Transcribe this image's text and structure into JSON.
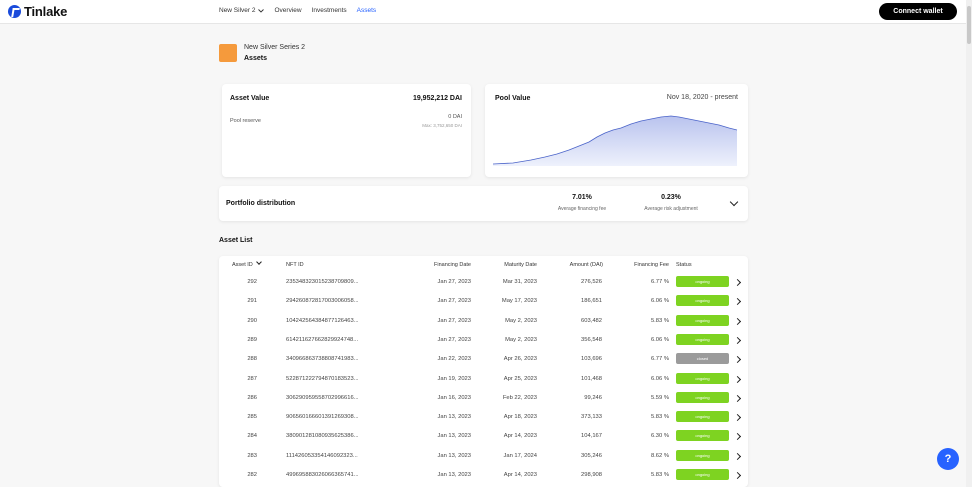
{
  "header": {
    "logo_text": "Tinlake",
    "nav": {
      "pool_selector": "New Silver 2",
      "overview": "Overview",
      "investments": "Investments",
      "assets": "Assets"
    },
    "connect_label": "Connect wallet"
  },
  "pool": {
    "name": "New Silver Series 2",
    "page": "Assets"
  },
  "asset_value": {
    "label": "Asset Value",
    "value": "19,952,212 DAI",
    "reserve_label": "Pool reserve",
    "reserve_value": "0 DAI",
    "reserve_max": "Max: 3,752,650 DAI"
  },
  "pool_value": {
    "label": "Pool Value",
    "range": "Nov 18, 2020 - present"
  },
  "portfolio": {
    "label": "Portfolio distribution",
    "financing_fee_value": "7.01%",
    "financing_fee_label": "Average financing fee",
    "risk_value": "0.23%",
    "risk_label": "Average risk adjustment"
  },
  "asset_list": {
    "title": "Asset List",
    "columns": {
      "asset_id": "Asset ID",
      "nft_id": "NFT ID",
      "financing_date": "Financing Date",
      "maturity_date": "Maturity Date",
      "amount": "Amount (DAI)",
      "fee": "Financing Fee",
      "status": "Status"
    },
    "rows": [
      {
        "id": "292",
        "nft": "235348323015238709809...",
        "fin": "Jan 27, 2023",
        "mat": "Mar 31, 2023",
        "amt": "276,526",
        "fee": "6.77 %",
        "status": "ongoing"
      },
      {
        "id": "291",
        "nft": "294260872817003006058...",
        "fin": "Jan 27, 2023",
        "mat": "May 17, 2023",
        "amt": "186,651",
        "fee": "6.06 %",
        "status": "ongoing"
      },
      {
        "id": "290",
        "nft": "104242564384877126463...",
        "fin": "Jan 27, 2023",
        "mat": "May 2, 2023",
        "amt": "603,482",
        "fee": "5.83 %",
        "status": "ongoing"
      },
      {
        "id": "289",
        "nft": "614211627662829924748...",
        "fin": "Jan 27, 2023",
        "mat": "May 2, 2023",
        "amt": "356,548",
        "fee": "6.06 %",
        "status": "ongoing"
      },
      {
        "id": "288",
        "nft": "340966863738808741983...",
        "fin": "Jan 22, 2023",
        "mat": "Apr 26, 2023",
        "amt": "103,696",
        "fee": "6.77 %",
        "status": "closed"
      },
      {
        "id": "287",
        "nft": "522871222794870183523...",
        "fin": "Jan 19, 2023",
        "mat": "Apr 25, 2023",
        "amt": "101,468",
        "fee": "6.06 %",
        "status": "ongoing"
      },
      {
        "id": "286",
        "nft": "306290959558702996616...",
        "fin": "Jan 16, 2023",
        "mat": "Feb 22, 2023",
        "amt": "99,246",
        "fee": "5.59 %",
        "status": "ongoing"
      },
      {
        "id": "285",
        "nft": "906560166601391269308...",
        "fin": "Jan 13, 2023",
        "mat": "Apr 18, 2023",
        "amt": "373,133",
        "fee": "5.83 %",
        "status": "ongoing"
      },
      {
        "id": "284",
        "nft": "380901281080935625386...",
        "fin": "Jan 13, 2023",
        "mat": "Apr 14, 2023",
        "amt": "104,167",
        "fee": "6.30 %",
        "status": "ongoing"
      },
      {
        "id": "283",
        "nft": "111426053354146092323...",
        "fin": "Jan 13, 2023",
        "mat": "Jan 17, 2024",
        "amt": "305,246",
        "fee": "8.62 %",
        "status": "ongoing"
      },
      {
        "id": "282",
        "nft": "499695883026066365741...",
        "fin": "Jan 13, 2023",
        "mat": "Apr 14, 2023",
        "amt": "298,908",
        "fee": "5.83 %",
        "status": "ongoing"
      },
      {
        "id": "",
        "nft": "",
        "fin": "",
        "mat": "",
        "amt": "",
        "fee": "",
        "status": ""
      }
    ]
  },
  "colors": {
    "brand": "#2762ff",
    "ongoing": "#7ed321",
    "closed": "#9b9b9b",
    "pool_icon": "#f59a3c"
  },
  "help_label": "?"
}
